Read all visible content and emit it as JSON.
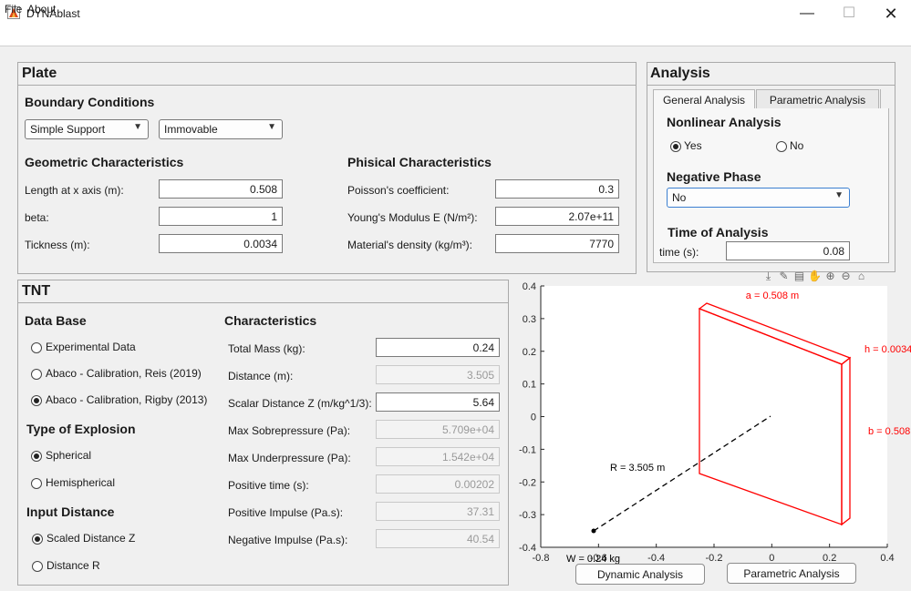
{
  "window": {
    "title": "DYNAblast",
    "minimize": "—",
    "maximize": "☐",
    "close": "✕"
  },
  "menu": {
    "file": "File",
    "about": "About"
  },
  "plate": {
    "title": "Plate",
    "boundary_title": "Boundary Conditions",
    "support_selected": "Simple Support",
    "movability_selected": "Immovable",
    "geometric_title": "Geometric Characteristics",
    "length_label": "Length at x axis (m):",
    "length_value": "0.508",
    "beta_label": "beta:",
    "beta_value": "1",
    "thickness_label": "Tickness (m):",
    "thickness_value": "0.0034",
    "physical_title": "Phisical Characteristics",
    "poisson_label": "Poisson's coefficient:",
    "poisson_value": "0.3",
    "young_label": "Young's Modulus E (N/m²):",
    "young_value": "2.07e+11",
    "density_label": "Material's density (kg/m³):",
    "density_value": "7770"
  },
  "analysis": {
    "title": "Analysis",
    "tab_general": "General Analysis",
    "tab_parametric": "Parametric Analysis",
    "nonlinear_title": "Nonlinear Analysis",
    "yes_label": "Yes",
    "no_label": "No",
    "nonlinear_selected": "Yes",
    "negative_title": "Negative Phase",
    "negative_selected": "No",
    "time_title": "Time of Analysis",
    "time_label": "time (s):",
    "time_value": "0.08"
  },
  "tnt": {
    "title": "TNT",
    "database_title": "Data Base",
    "db_options": [
      "Experimental Data",
      "Abaco - Calibration, Reis (2019)",
      "Abaco - Calibration, Rigby (2013)"
    ],
    "db_selected_index": 2,
    "explosion_title": "Type of Explosion",
    "explosion_options": [
      "Spherical",
      "Hemispherical"
    ],
    "explosion_selected_index": 0,
    "distance_title": "Input Distance",
    "distance_options": [
      "Scaled Distance Z",
      "Distance R"
    ],
    "distance_selected_index": 0,
    "characteristics_title": "Characteristics",
    "rows": [
      {
        "label": "Total Mass (kg):",
        "value": "0.24",
        "editable": true
      },
      {
        "label": "Distance (m):",
        "value": "3.505",
        "editable": false
      },
      {
        "label": "Scalar Distance Z (m/kg^1/3):",
        "value": "5.64",
        "editable": true
      },
      {
        "label": "Max Sobrepressure (Pa):",
        "value": "5.709e+04",
        "editable": false
      },
      {
        "label": "Max Underpressure (Pa):",
        "value": "1.542e+04",
        "editable": false
      },
      {
        "label": "Positive time (s):",
        "value": "0.00202",
        "editable": false
      },
      {
        "label": "Positive Impulse (Pa.s):",
        "value": "37.31",
        "editable": false
      },
      {
        "label": "Negative Impulse (Pa.s):",
        "value": "40.54",
        "editable": false
      }
    ]
  },
  "plot": {
    "y_ticks": [
      "0.4",
      "0.3",
      "0.2",
      "0.1",
      "0",
      "-0.1",
      "-0.2",
      "-0.3",
      "-0.4"
    ],
    "x_ticks": [
      "-0.8",
      "-0.6",
      "-0.4",
      "-0.2",
      "0",
      "0.2",
      "0.4"
    ],
    "label_a": "a = 0.508 m",
    "label_h": "h = 0.0034",
    "label_b": "b = 0.508",
    "label_r": "R = 3.505 m",
    "label_w": "W = 0.24 kg",
    "plate_color": "#ff0000",
    "toolbar_icons": [
      "export-icon",
      "brush-icon",
      "datatip-icon",
      "pan-icon",
      "zoom-in-icon",
      "zoom-out-icon",
      "home-icon"
    ]
  },
  "buttons": {
    "dynamic": "Dynamic Analysis",
    "parametric": "Parametric Analysis"
  }
}
